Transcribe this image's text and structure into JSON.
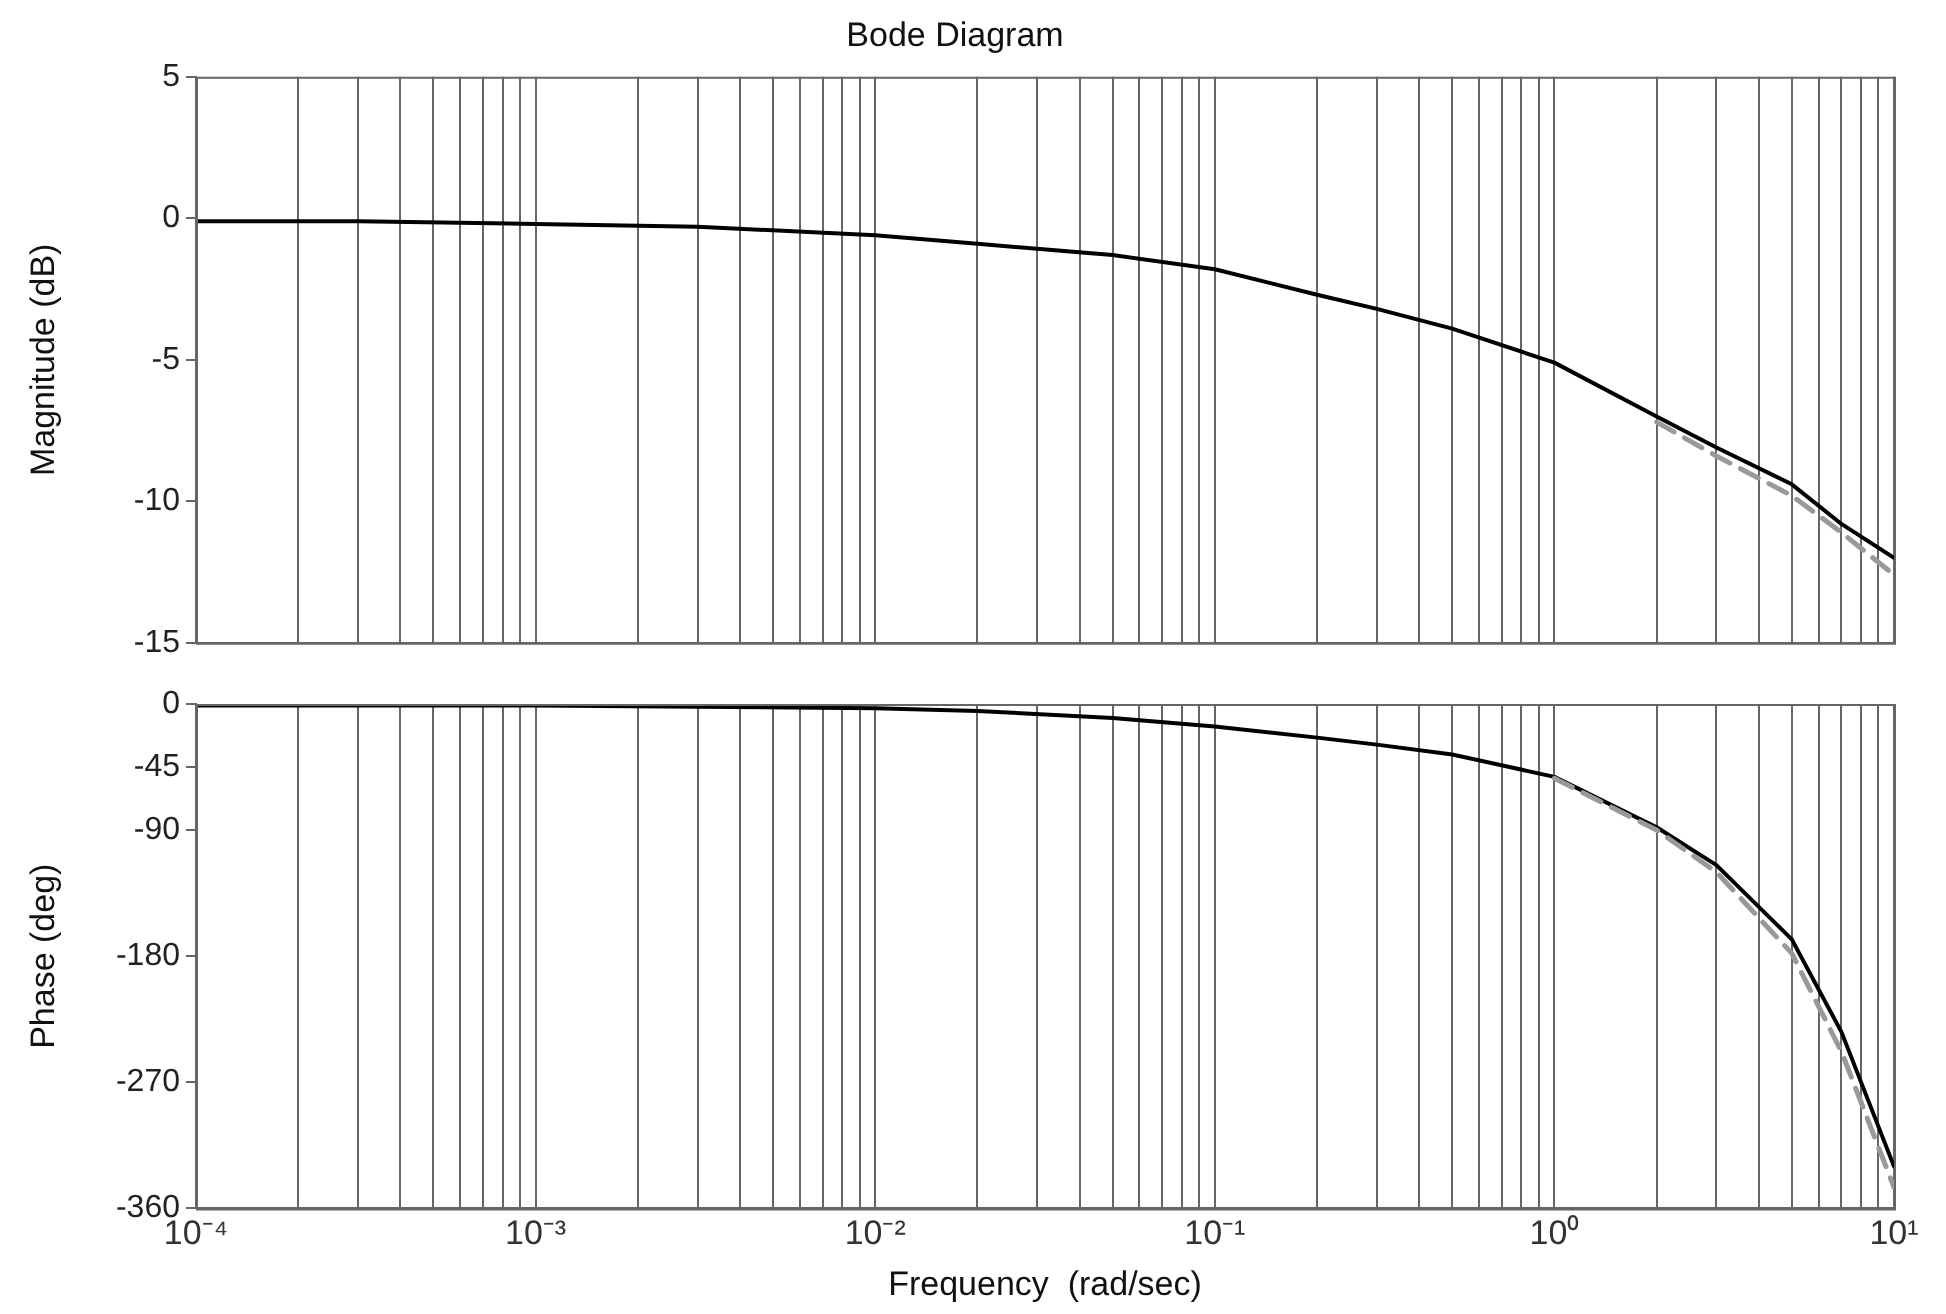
{
  "chart_data": [
    {
      "type": "line",
      "title": "Bode Diagram",
      "ylabel": "Magnitude (dB)",
      "x": [
        0.0001,
        0.0003,
        0.001,
        0.003,
        0.01,
        0.02,
        0.05,
        0.1,
        0.2,
        0.3,
        0.5,
        1,
        2,
        3,
        5,
        7,
        10
      ],
      "series": [
        {
          "color": "#000000",
          "values": [
            -0.1,
            -0.1,
            -0.2,
            -0.3,
            -0.6,
            -0.9,
            -1.3,
            -1.8,
            -2.7,
            -3.2,
            -3.9,
            -5.1,
            -7.0,
            -8.1,
            -9.4,
            -10.8,
            -12.0
          ]
        },
        {
          "color": "#999999",
          "line_style": "dashed",
          "x": [
            2,
            3,
            5,
            7,
            10
          ],
          "values": [
            -7.2,
            -8.4,
            -9.8,
            -11.1,
            -12.6
          ]
        }
      ],
      "xlim": [
        0.0001,
        10
      ],
      "xticks": [
        {
          "value": 0.0001,
          "label": null
        },
        {
          "value": 0.0002,
          "label": null
        },
        {
          "value": 0.0003,
          "label": null
        },
        {
          "value": 0.0004,
          "label": null
        },
        {
          "value": 0.0005,
          "label": null
        },
        {
          "value": 0.0006,
          "label": null
        },
        {
          "value": 0.0007,
          "label": null
        },
        {
          "value": 0.0008,
          "label": null
        },
        {
          "value": 0.0009,
          "label": null
        },
        {
          "value": 0.001,
          "label": null
        },
        {
          "value": 0.002,
          "label": null
        },
        {
          "value": 0.003,
          "label": null
        },
        {
          "value": 0.004,
          "label": null
        },
        {
          "value": 0.005,
          "label": null
        },
        {
          "value": 0.006,
          "label": null
        },
        {
          "value": 0.007,
          "label": null
        },
        {
          "value": 0.008,
          "label": null
        },
        {
          "value": 0.009,
          "label": null
        },
        {
          "value": 0.01,
          "label": null
        },
        {
          "value": 0.02,
          "label": null
        },
        {
          "value": 0.03,
          "label": null
        },
        {
          "value": 0.04,
          "label": null
        },
        {
          "value": 0.05,
          "label": null
        },
        {
          "value": 0.06,
          "label": null
        },
        {
          "value": 0.07,
          "label": null
        },
        {
          "value": 0.08,
          "label": null
        },
        {
          "value": 0.09,
          "label": null
        },
        {
          "value": 0.1,
          "label": null
        },
        {
          "value": 0.2,
          "label": null
        },
        {
          "value": 0.3,
          "label": null
        },
        {
          "value": 0.4,
          "label": null
        },
        {
          "value": 0.5,
          "label": null
        },
        {
          "value": 0.6,
          "label": null
        },
        {
          "value": 0.7,
          "label": null
        },
        {
          "value": 0.8,
          "label": null
        },
        {
          "value": 0.9,
          "label": null
        },
        {
          "value": 1,
          "label": null
        },
        {
          "value": 2,
          "label": null
        },
        {
          "value": 3,
          "label": null
        },
        {
          "value": 4,
          "label": null
        },
        {
          "value": 5,
          "label": null
        },
        {
          "value": 6,
          "label": null
        },
        {
          "value": 7,
          "label": null
        },
        {
          "value": 8,
          "label": null
        },
        {
          "value": 9,
          "label": null
        },
        {
          "value": 10,
          "label": null
        }
      ],
      "ylim": [
        -15,
        5
      ],
      "yticks": [
        -15,
        -10,
        -5,
        0,
        5
      ],
      "grid": "x",
      "log": "x",
      "tick_labels": "y",
      "marker": "none"
    },
    {
      "type": "line",
      "xlabel": "Frequency  (rad/sec)",
      "ylabel": "Phase (deg)",
      "x": [
        0.0001,
        0.0003,
        0.001,
        0.003,
        0.01,
        0.02,
        0.05,
        0.1,
        0.2,
        0.3,
        0.5,
        1,
        2,
        3,
        5,
        7,
        10
      ],
      "series": [
        {
          "color": "#000000",
          "values": [
            -1,
            -1,
            -1,
            -2,
            -3,
            -5,
            -10,
            -16,
            -24,
            -29,
            -36,
            -52,
            -88,
            -115,
            -168,
            -234,
            -330
          ]
        },
        {
          "color": "#999999",
          "line_style": "dashed",
          "x": [
            1,
            2,
            3,
            5,
            7,
            10
          ],
          "values": [
            -53,
            -90,
            -120,
            -178,
            -248,
            -345
          ]
        }
      ],
      "xlim": [
        0.0001,
        10
      ],
      "xticks": [
        {
          "value": 0.0001,
          "label": "10⁻⁴"
        },
        {
          "value": 0.0002,
          "label": null
        },
        {
          "value": 0.0003,
          "label": null
        },
        {
          "value": 0.0004,
          "label": null
        },
        {
          "value": 0.0005,
          "label": null
        },
        {
          "value": 0.0006,
          "label": null
        },
        {
          "value": 0.0007,
          "label": null
        },
        {
          "value": 0.0008,
          "label": null
        },
        {
          "value": 0.0009,
          "label": null
        },
        {
          "value": 0.001,
          "label": "10⁻³"
        },
        {
          "value": 0.002,
          "label": null
        },
        {
          "value": 0.003,
          "label": null
        },
        {
          "value": 0.004,
          "label": null
        },
        {
          "value": 0.005,
          "label": null
        },
        {
          "value": 0.006,
          "label": null
        },
        {
          "value": 0.007,
          "label": null
        },
        {
          "value": 0.008,
          "label": null
        },
        {
          "value": 0.009,
          "label": null
        },
        {
          "value": 0.01,
          "label": "10⁻²"
        },
        {
          "value": 0.02,
          "label": null
        },
        {
          "value": 0.03,
          "label": null
        },
        {
          "value": 0.04,
          "label": null
        },
        {
          "value": 0.05,
          "label": null
        },
        {
          "value": 0.06,
          "label": null
        },
        {
          "value": 0.07,
          "label": null
        },
        {
          "value": 0.08,
          "label": null
        },
        {
          "value": 0.09,
          "label": null
        },
        {
          "value": 0.1,
          "label": "10⁻¹"
        },
        {
          "value": 0.2,
          "label": null
        },
        {
          "value": 0.3,
          "label": null
        },
        {
          "value": 0.4,
          "label": null
        },
        {
          "value": 0.5,
          "label": null
        },
        {
          "value": 0.6,
          "label": null
        },
        {
          "value": 0.7,
          "label": null
        },
        {
          "value": 0.8,
          "label": null
        },
        {
          "value": 0.9,
          "label": null
        },
        {
          "value": 1,
          "label": "10⁰"
        },
        {
          "value": 2,
          "label": null
        },
        {
          "value": 3,
          "label": null
        },
        {
          "value": 4,
          "label": null
        },
        {
          "value": 5,
          "label": null
        },
        {
          "value": 6,
          "label": null
        },
        {
          "value": 7,
          "label": null
        },
        {
          "value": 8,
          "label": null
        },
        {
          "value": 9,
          "label": null
        },
        {
          "value": 10,
          "label": "10¹"
        }
      ],
      "ylim": [
        -360,
        0
      ],
      "yticks": [
        -360,
        -270,
        -180,
        -90,
        -45,
        0
      ],
      "grid": "x",
      "log": "x",
      "marker": "none"
    }
  ]
}
